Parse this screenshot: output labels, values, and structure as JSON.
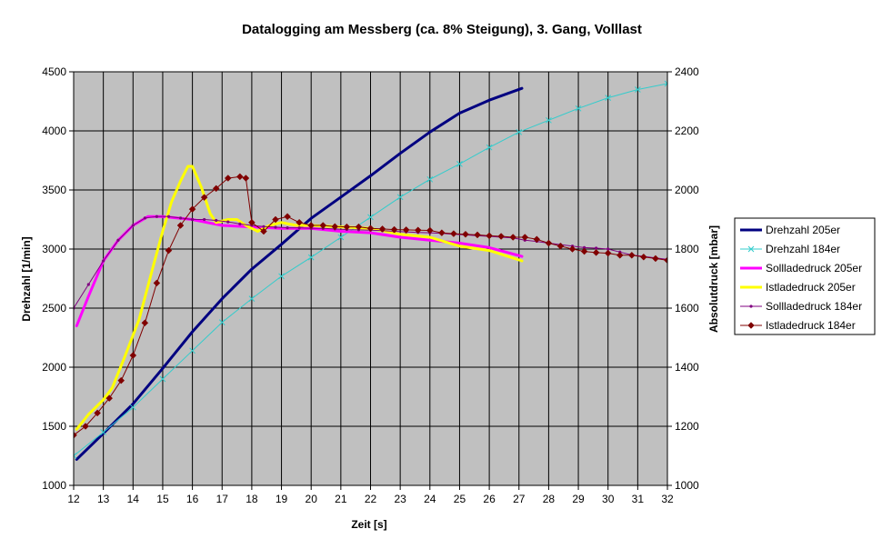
{
  "chart_data": {
    "type": "line",
    "title": "Datalogging am Messberg (ca. 8% Steigung), 3. Gang, Volllast",
    "xlabel": "Zeit [s]",
    "ylabel": "Drehzahl [1/min]",
    "y2label": "Absolutdruck [mbar]",
    "xlim": [
      12,
      32
    ],
    "ylim": [
      1000,
      4500
    ],
    "y2lim": [
      1000,
      2400
    ],
    "xticks": [
      "12",
      "13",
      "14",
      "15",
      "16",
      "17",
      "18",
      "19",
      "20",
      "21",
      "22",
      "23",
      "24",
      "25",
      "26",
      "27",
      "28",
      "29",
      "30",
      "31",
      "32"
    ],
    "yticks": [
      "1000",
      "1500",
      "2000",
      "2500",
      "3000",
      "3500",
      "4000",
      "4500"
    ],
    "y2ticks": [
      "1000",
      "1200",
      "1400",
      "1600",
      "1800",
      "2000",
      "2200",
      "2400"
    ],
    "grid": true,
    "plot_background": "#c0c0c0",
    "legend_position": "right",
    "series": [
      {
        "name": "Drehzahl 205er",
        "axis": "left",
        "color": "#000080",
        "marker": "none",
        "points": [
          [
            12.1,
            1220
          ],
          [
            13,
            1440
          ],
          [
            14,
            1690
          ],
          [
            15,
            1990
          ],
          [
            16,
            2300
          ],
          [
            17,
            2580
          ],
          [
            18,
            2830
          ],
          [
            19,
            3040
          ],
          [
            20,
            3260
          ],
          [
            21,
            3440
          ],
          [
            22,
            3620
          ],
          [
            23,
            3810
          ],
          [
            24,
            3990
          ],
          [
            25,
            4150
          ],
          [
            26,
            4260
          ],
          [
            27.1,
            4360
          ]
        ]
      },
      {
        "name": "Drehzahl 184er",
        "axis": "left",
        "color": "#33cccc",
        "marker": "x",
        "points": [
          [
            12,
            1250
          ],
          [
            13,
            1450
          ],
          [
            14,
            1660
          ],
          [
            15,
            1900
          ],
          [
            16,
            2140
          ],
          [
            17,
            2380
          ],
          [
            18,
            2580
          ],
          [
            19,
            2770
          ],
          [
            20,
            2930
          ],
          [
            21,
            3100
          ],
          [
            22,
            3270
          ],
          [
            23,
            3440
          ],
          [
            24,
            3590
          ],
          [
            25,
            3720
          ],
          [
            26,
            3860
          ],
          [
            27,
            3990
          ],
          [
            28,
            4090
          ],
          [
            29,
            4190
          ],
          [
            30,
            4280
          ],
          [
            31,
            4350
          ],
          [
            32,
            4400
          ]
        ]
      },
      {
        "name": "Sollladedruck 205er",
        "axis": "right",
        "color": "#ff00ff",
        "marker": "none",
        "points": [
          [
            12.1,
            1540
          ],
          [
            12.5,
            1640
          ],
          [
            13,
            1760
          ],
          [
            13.5,
            1830
          ],
          [
            14,
            1880
          ],
          [
            14.5,
            1910
          ],
          [
            15,
            1910
          ],
          [
            15.5,
            1905
          ],
          [
            16,
            1900
          ],
          [
            16.5,
            1890
          ],
          [
            17,
            1880
          ],
          [
            18,
            1875
          ],
          [
            19,
            1870
          ],
          [
            20,
            1870
          ],
          [
            21,
            1860
          ],
          [
            22,
            1855
          ],
          [
            23,
            1840
          ],
          [
            24,
            1830
          ],
          [
            25,
            1820
          ],
          [
            26,
            1805
          ],
          [
            27.1,
            1775
          ]
        ]
      },
      {
        "name": "Istladedruck 205er",
        "axis": "right",
        "color": "#ffff00",
        "marker": "none",
        "points": [
          [
            12.1,
            1190
          ],
          [
            12.5,
            1240
          ],
          [
            13,
            1290
          ],
          [
            13.3,
            1330
          ],
          [
            13.7,
            1430
          ],
          [
            14.2,
            1560
          ],
          [
            14.7,
            1750
          ],
          [
            15,
            1860
          ],
          [
            15.3,
            1960
          ],
          [
            15.6,
            2030
          ],
          [
            15.85,
            2080
          ],
          [
            16,
            2080
          ],
          [
            16.3,
            2010
          ],
          [
            16.6,
            1920
          ],
          [
            16.8,
            1890
          ],
          [
            17.2,
            1900
          ],
          [
            17.5,
            1900
          ],
          [
            17.8,
            1880
          ],
          [
            18.2,
            1860
          ],
          [
            18.6,
            1880
          ],
          [
            19,
            1890
          ],
          [
            19.5,
            1880
          ],
          [
            20,
            1880
          ],
          [
            21,
            1875
          ],
          [
            22,
            1870
          ],
          [
            22.5,
            1860
          ],
          [
            23,
            1850
          ],
          [
            24,
            1840
          ],
          [
            25,
            1810
          ],
          [
            26,
            1795
          ],
          [
            27.1,
            1760
          ]
        ]
      },
      {
        "name": "Sollladedruck 184er",
        "axis": "right",
        "color": "#800080",
        "marker": "dot",
        "points": [
          [
            12,
            1600
          ],
          [
            12.5,
            1680
          ],
          [
            13,
            1760
          ],
          [
            13.5,
            1830
          ],
          [
            14,
            1880
          ],
          [
            14.4,
            1905
          ],
          [
            14.8,
            1910
          ],
          [
            15.2,
            1910
          ],
          [
            15.6,
            1905
          ],
          [
            16,
            1900
          ],
          [
            16.4,
            1900
          ],
          [
            16.8,
            1897
          ],
          [
            17.2,
            1892
          ],
          [
            17.6,
            1885
          ],
          [
            18,
            1880
          ],
          [
            18.4,
            1876
          ],
          [
            18.8,
            1874
          ],
          [
            19.2,
            1872
          ],
          [
            19.6,
            1872
          ],
          [
            20,
            1870
          ],
          [
            20.4,
            1870
          ],
          [
            20.8,
            1868
          ],
          [
            21.2,
            1866
          ],
          [
            21.6,
            1865
          ],
          [
            22,
            1864
          ],
          [
            22.4,
            1862
          ],
          [
            22.8,
            1860
          ],
          [
            23.2,
            1858
          ],
          [
            23.6,
            1856
          ],
          [
            24,
            1855
          ],
          [
            24.4,
            1853
          ],
          [
            24.8,
            1850
          ],
          [
            25.2,
            1848
          ],
          [
            25.6,
            1845
          ],
          [
            26,
            1843
          ],
          [
            26.4,
            1840
          ],
          [
            26.8,
            1838
          ],
          [
            27.2,
            1830
          ],
          [
            27.6,
            1826
          ],
          [
            28,
            1820
          ],
          [
            28.4,
            1815
          ],
          [
            28.8,
            1810
          ],
          [
            29.2,
            1805
          ],
          [
            29.6,
            1803
          ],
          [
            30,
            1800
          ],
          [
            30.4,
            1790
          ],
          [
            30.8,
            1780
          ],
          [
            31.2,
            1775
          ],
          [
            31.6,
            1770
          ],
          [
            32,
            1765
          ]
        ]
      },
      {
        "name": "Istladedruck 184er",
        "axis": "right",
        "color": "#800000",
        "marker": "diamond",
        "points": [
          [
            12,
            1170
          ],
          [
            12.4,
            1200
          ],
          [
            12.8,
            1245
          ],
          [
            13.2,
            1295
          ],
          [
            13.6,
            1355
          ],
          [
            14,
            1440
          ],
          [
            14.4,
            1550
          ],
          [
            14.8,
            1685
          ],
          [
            15.2,
            1795
          ],
          [
            15.6,
            1880
          ],
          [
            16,
            1935
          ],
          [
            16.4,
            1975
          ],
          [
            16.8,
            2005
          ],
          [
            17.2,
            2040
          ],
          [
            17.6,
            2045
          ],
          [
            17.8,
            2040
          ],
          [
            18,
            1890
          ],
          [
            18.4,
            1860
          ],
          [
            18.8,
            1900
          ],
          [
            19.2,
            1910
          ],
          [
            19.6,
            1890
          ],
          [
            20,
            1880
          ],
          [
            20.4,
            1880
          ],
          [
            20.8,
            1876
          ],
          [
            21.2,
            1875
          ],
          [
            21.6,
            1875
          ],
          [
            22,
            1870
          ],
          [
            22.4,
            1868
          ],
          [
            22.8,
            1866
          ],
          [
            23.2,
            1865
          ],
          [
            23.6,
            1864
          ],
          [
            24,
            1863
          ],
          [
            24.4,
            1855
          ],
          [
            24.8,
            1852
          ],
          [
            25.2,
            1850
          ],
          [
            25.6,
            1848
          ],
          [
            26,
            1845
          ],
          [
            26.4,
            1843
          ],
          [
            26.8,
            1840
          ],
          [
            27.2,
            1840
          ],
          [
            27.6,
            1833
          ],
          [
            28,
            1820
          ],
          [
            28.4,
            1810
          ],
          [
            28.8,
            1800
          ],
          [
            29.2,
            1792
          ],
          [
            29.6,
            1788
          ],
          [
            30,
            1786
          ],
          [
            30.4,
            1779
          ],
          [
            30.8,
            1779
          ],
          [
            31.2,
            1773
          ],
          [
            31.6,
            1768
          ],
          [
            32,
            1762
          ]
        ]
      }
    ]
  }
}
